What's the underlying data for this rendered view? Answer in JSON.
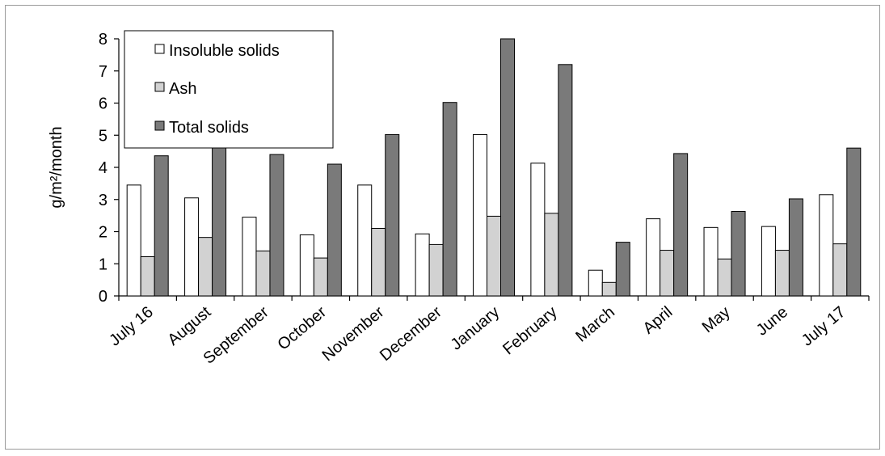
{
  "chart_data": {
    "type": "bar",
    "title": "",
    "xlabel": "",
    "ylabel": "g/m²/month",
    "ylim": [
      0,
      8
    ],
    "yticks": [
      0,
      1,
      2,
      3,
      4,
      5,
      6,
      7,
      8
    ],
    "grid": false,
    "legend_position": "top-left",
    "categories": [
      "July 16",
      "August",
      "September",
      "October",
      "November",
      "December",
      "January",
      "February",
      "March",
      "April",
      "May",
      "June",
      "July 17"
    ],
    "series": [
      {
        "name": "Insoluble solids",
        "color": "#ffffff",
        "values": [
          3.45,
          3.05,
          2.45,
          1.9,
          3.45,
          1.93,
          5.02,
          4.13,
          0.8,
          2.4,
          2.13,
          2.16,
          3.15
        ]
      },
      {
        "name": "Ash",
        "color": "#d2d2d2",
        "values": [
          1.22,
          1.82,
          1.4,
          1.18,
          2.1,
          1.6,
          2.48,
          2.57,
          0.42,
          1.42,
          1.15,
          1.42,
          1.62
        ]
      },
      {
        "name": "Total solids",
        "color": "#7a7a7a",
        "values": [
          4.36,
          4.7,
          4.4,
          4.1,
          5.02,
          6.02,
          8.0,
          7.2,
          1.67,
          4.43,
          2.63,
          3.02,
          4.6
        ]
      }
    ]
  }
}
